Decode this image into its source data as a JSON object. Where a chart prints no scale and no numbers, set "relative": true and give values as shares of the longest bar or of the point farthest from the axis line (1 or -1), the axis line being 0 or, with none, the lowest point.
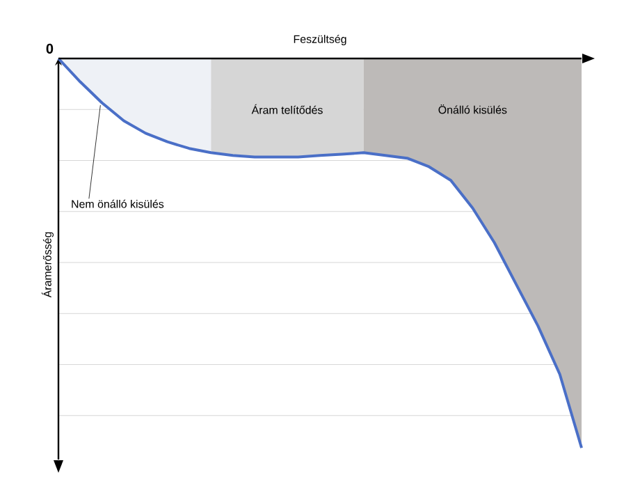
{
  "chart_data": {
    "type": "line",
    "relative": true,
    "xlabel": "Feszültség",
    "ylabel": "Áramerősség",
    "categories": [
      null,
      null,
      null,
      null,
      null,
      null,
      null,
      null,
      null,
      null,
      null,
      null,
      null,
      null,
      null,
      null,
      null,
      null,
      null,
      null,
      null,
      null,
      null,
      null,
      null
    ],
    "series": [
      {
        "type": "area",
        "color": "#eef1f6",
        "values": [
          0,
          -0.06,
          -0.114,
          -0.16,
          -0.192,
          -0.214,
          -0.231,
          -0.242,
          null,
          null,
          null,
          null,
          null,
          null,
          null,
          null,
          null,
          null,
          null,
          null,
          null,
          null,
          null,
          null,
          null
        ]
      },
      {
        "type": "area",
        "color": "#d6d6d6",
        "values": [
          null,
          null,
          null,
          null,
          null,
          null,
          null,
          -0.242,
          -0.249,
          -0.253,
          -0.253,
          -0.253,
          -0.249,
          -0.246,
          -0.242,
          null,
          null,
          null,
          null,
          null,
          null,
          null,
          null,
          null,
          null
        ]
      },
      {
        "type": "area",
        "color": "#bdbab8",
        "values": [
          null,
          null,
          null,
          null,
          null,
          null,
          null,
          null,
          null,
          null,
          null,
          null,
          null,
          null,
          -0.242,
          -0.249,
          -0.256,
          -0.278,
          -0.313,
          -0.384,
          -0.473,
          -0.58,
          -0.687,
          -0.811,
          -1
        ]
      },
      {
        "color": "#4a6fc7",
        "values": [
          0,
          -0.06,
          -0.114,
          -0.16,
          -0.192,
          -0.214,
          -0.231,
          -0.242,
          -0.249,
          -0.253,
          -0.253,
          -0.253,
          -0.249,
          -0.246,
          -0.242,
          -0.249,
          -0.256,
          -0.278,
          -0.313,
          -0.384,
          -0.473,
          -0.58,
          -0.687,
          -0.811,
          -1
        ]
      }
    ],
    "grid": "y",
    "marker": "none",
    "line_style": "solid",
    "annotations": [
      "0",
      "Nem önálló kisülés",
      "Áram telítődés",
      "Önálló kisülés"
    ]
  }
}
